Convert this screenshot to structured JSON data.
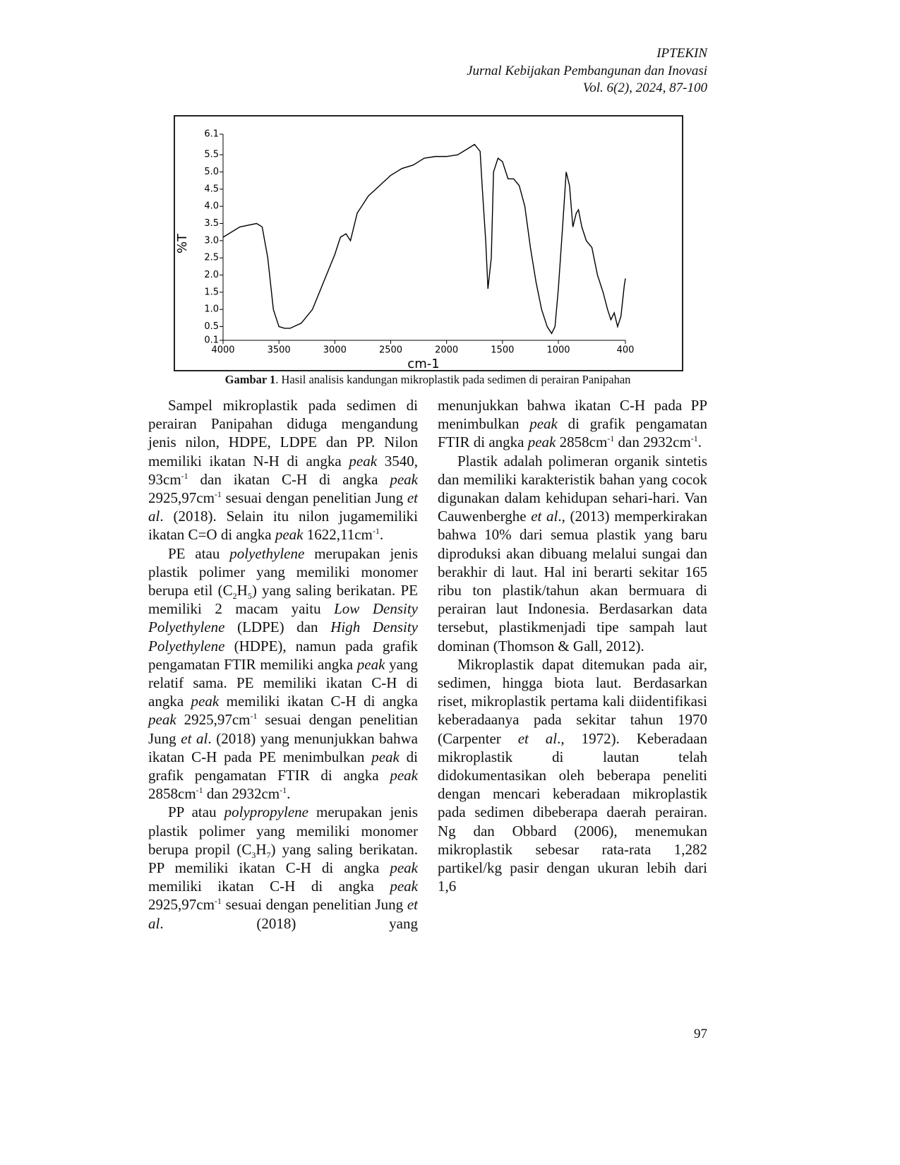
{
  "header": {
    "lines": [
      "IPTEKIN",
      "Jurnal Kebijakan Pembangunan dan Inovasi",
      "Vol. 6(2), 2024, 87-100"
    ]
  },
  "chart_data": {
    "type": "line",
    "xlabel": "cm-1",
    "ylabel": "%T",
    "x": [
      4000,
      3850,
      3700,
      3650,
      3600,
      3550,
      3500,
      3450,
      3400,
      3300,
      3200,
      3100,
      3000,
      2950,
      2900,
      2860,
      2800,
      2700,
      2600,
      2500,
      2400,
      2300,
      2250,
      2200,
      2100,
      2000,
      1900,
      1800,
      1750,
      1700,
      1680,
      1650,
      1630,
      1600,
      1580,
      1540,
      1500,
      1450,
      1400,
      1350,
      1300,
      1250,
      1200,
      1150,
      1100,
      1060,
      1030,
      1000,
      960,
      930,
      900,
      870,
      840,
      820,
      790,
      750,
      700,
      650,
      600,
      560,
      530,
      500,
      470,
      440,
      410,
      400
    ],
    "series": [
      {
        "name": "%T",
        "color": "#000000",
        "values": [
          3.1,
          3.4,
          3.5,
          3.4,
          2.5,
          1.0,
          0.5,
          0.45,
          0.45,
          0.6,
          1.0,
          1.8,
          2.6,
          3.1,
          3.2,
          3.0,
          3.8,
          4.3,
          4.6,
          4.9,
          5.1,
          5.2,
          5.3,
          5.4,
          5.45,
          5.45,
          5.5,
          5.7,
          5.8,
          5.6,
          4.5,
          3.0,
          1.6,
          2.5,
          5.0,
          5.4,
          5.3,
          4.8,
          4.8,
          4.6,
          4.0,
          2.8,
          1.8,
          1.0,
          0.5,
          0.3,
          0.5,
          1.6,
          3.5,
          5.0,
          4.6,
          3.4,
          3.8,
          3.9,
          3.4,
          3.0,
          2.8,
          2.0,
          1.5,
          1.0,
          0.7,
          0.9,
          0.5,
          0.8,
          1.7,
          1.9
        ]
      }
    ],
    "xlim": [
      4000,
      400
    ],
    "xticks": [
      4000,
      3500,
      3000,
      2500,
      2000,
      1500,
      1000,
      400
    ],
    "ylim": [
      0.1,
      6.1
    ],
    "yticks": [
      0.1,
      0.5,
      {
        "value": 1,
        "label": "1.0"
      },
      1.5,
      {
        "value": 2,
        "label": "2.0"
      },
      2.5,
      {
        "value": 3,
        "label": "3.0"
      },
      3.5,
      {
        "value": 4,
        "label": "4.0"
      },
      4.5,
      {
        "value": 5,
        "label": "5.0"
      },
      5.5,
      6.1
    ],
    "grid": false
  },
  "caption": {
    "label": "Gambar 1",
    "text": ". Hasil analisis kandungan mikroplastik pada sedimen di perairan Panipahan"
  },
  "text": {
    "columns": [
      {
        "paragraphs": [
          [
            "Sampel mikroplastik pada sedimen di perairan Panipahan diduga mengandung jenis nilon, HDPE, LDPE dan PP. Nilon memiliki ikatan N-H di angka ",
            {
              "i": "peak"
            },
            " 3540, 93cm",
            {
              "sup": "-1"
            },
            " dan ikatan C-H di angka ",
            {
              "i": "peak"
            },
            " 2925,97cm",
            {
              "sup": "-1"
            },
            " sesuai dengan penelitian Jung ",
            {
              "i": "et al"
            },
            ". (2018). Selain itu nilon jugamemiliki ikatan C=O di angka ",
            {
              "i": "peak"
            },
            " 1622,11cm",
            {
              "sup": "-1"
            },
            "."
          ],
          [
            "PE atau ",
            {
              "i": "polyethylene"
            },
            " merupakan jenis plastik polimer yang memiliki monomer berupa etil (C",
            {
              "sub": "2"
            },
            "H",
            {
              "sub": "5"
            },
            ") yang saling berikatan. PE memiliki 2 macam yaitu ",
            {
              "i": "Low Density Polyethylene"
            },
            " (LDPE) dan ",
            {
              "i": "High Density Polyethylene"
            },
            " (HDPE), namun pada grafik pengamatan FTIR memiliki angka ",
            {
              "i": "peak"
            },
            " yang relatif sama. PE memiliki ikatan C-H di angka ",
            {
              "i": "peak"
            },
            " memiliki ikatan C-H di angka ",
            {
              "i": "peak"
            },
            " 2925,97cm",
            {
              "sup": "-1"
            },
            " sesuai dengan penelitian Jung ",
            {
              "i": "et al"
            },
            ". (2018) yang menunjukkan bahwa ikatan C-H pada PE menimbulkan ",
            {
              "i": "peak"
            },
            " di grafik pengamatan FTIR di angka ",
            {
              "i": "peak"
            },
            " 2858cm",
            {
              "sup": "-1"
            },
            " dan 2932cm",
            {
              "sup": "-1"
            },
            "."
          ],
          [
            "PP atau ",
            {
              "i": "polypropylene"
            },
            " merupakan jenis plastik polimer yang memiliki monomer berupa propil (C",
            {
              "sub": "3"
            },
            "H",
            {
              "sub": "7"
            },
            ") yang saling berikatan. PP memiliki ikatan C-H di angka ",
            {
              "i": "peak"
            },
            " memiliki ikatan C-H di angka ",
            {
              "i": "peak"
            },
            " 2925,97cm",
            {
              "sup": "-1"
            },
            " sesuai dengan penelitian Jung ",
            {
              "i": "et al"
            },
            ". (2018) yang"
          ]
        ]
      },
      {
        "continued": [
          "menunjukkan bahwa ikatan C-H pada PP menimbulkan ",
          {
            "i": "peak"
          },
          " di grafik pengamatan FTIR di angka ",
          {
            "i": "peak"
          },
          " 2858cm",
          {
            "sup": "-1"
          },
          " dan 2932cm",
          {
            "sup": "-1"
          },
          "."
        ],
        "paragraphs": [
          [
            "Plastik adalah polimeran organik sintetis dan memiliki karakteristik bahan yang cocok digunakan dalam kehidupan sehari-hari. Van Cauwenberghe ",
            {
              "i": "et al"
            },
            "., (2013) memperkirakan bahwa 10% dari semua plastik yang baru diproduksi akan dibuang melalui sungai dan berakhir di laut. Hal ini berarti sekitar 165 ribu ton plastik/tahun akan bermuara di perairan laut Indonesia. Berdasarkan data tersebut, plastikmenjadi tipe sampah laut dominan (Thomson & Gall, 2012)."
          ],
          [
            "Mikroplastik dapat ditemukan pada air, sedimen, hingga biota laut. Berdasarkan riset, mikroplastik pertama kali diidentifikasi keberadaanya pada sekitar tahun 1970 (Carpenter ",
            {
              "i": "et al"
            },
            "., 1972). Keberadaan mikroplastik di lautan telah didokumentasikan oleh beberapa peneliti dengan mencari keberadaan mikroplastik pada sedimen dibeberapa daerah perairan. Ng dan Obbard (2006), menemukan mikroplastik sebesar rata-rata 1,282 partikel/kg pasir dengan ukuran lebih dari 1,6"
          ]
        ]
      }
    ]
  },
  "page_number": "97"
}
